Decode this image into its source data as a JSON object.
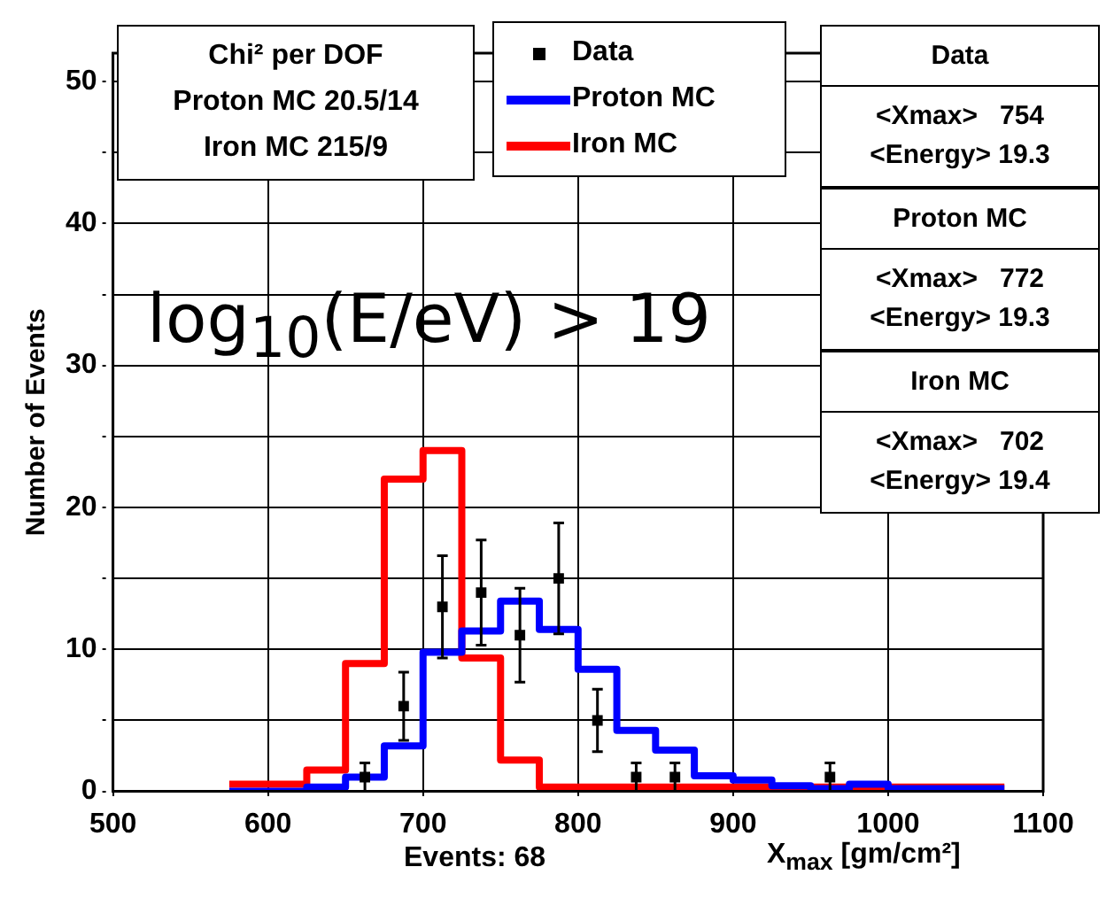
{
  "chart_data": {
    "type": "histogram",
    "title": "log$_{10}$(E/eV) > 19",
    "xlabel": "X$_{max}$ [gm/cm²]",
    "ylabel": "Number of Events",
    "bins": [
      575,
      600,
      625,
      650,
      675,
      700,
      725,
      750,
      775,
      800,
      825,
      850,
      875,
      900,
      925,
      950,
      975,
      1000,
      1025,
      1050,
      1075
    ],
    "series": [
      {
        "name": "Data",
        "type": "scatter",
        "color": "#000000",
        "marker": "square",
        "x": [
          662.5,
          687.5,
          712.5,
          737.5,
          762.5,
          787.5,
          812.5,
          837.5,
          862.5,
          962.5
        ],
        "values": [
          1,
          6,
          13,
          14,
          11,
          15,
          5,
          1,
          1,
          1
        ],
        "errors": [
          1,
          2.4,
          3.6,
          3.7,
          3.3,
          3.9,
          2.2,
          1,
          1,
          1
        ]
      },
      {
        "name": "Proton MC",
        "color": "#0000ff",
        "values": [
          0,
          0,
          0.3,
          1,
          3.2,
          9.8,
          11.3,
          13.4,
          11.4,
          8.6,
          4.3,
          2.9,
          1.1,
          0.8,
          0.4,
          0.2,
          0.5,
          0.2,
          0.2,
          0.2
        ]
      },
      {
        "name": "Iron MC",
        "color": "#ff0000",
        "values": [
          0.5,
          0.5,
          1.5,
          9,
          22,
          24,
          9.4,
          2.2,
          0.3,
          0.3,
          0.3,
          0.3,
          0.3,
          0.3,
          0.3,
          0.3,
          0.3,
          0.3,
          0.3,
          0.3
        ]
      }
    ],
    "xlim": [
      500,
      1100
    ],
    "xticks": [
      500,
      600,
      700,
      800,
      900,
      1000,
      1100
    ],
    "ylim": [
      0,
      52
    ],
    "yticks": [
      0,
      {
        "value": 5,
        "label": null
      },
      10,
      {
        "value": 15,
        "label": null
      },
      20,
      {
        "value": 25,
        "label": null
      },
      30,
      {
        "value": 35,
        "label": null
      },
      40,
      {
        "value": 45,
        "label": null
      },
      50
    ],
    "grid": true,
    "legend": "top",
    "annotations": [
      "Chi² per DOF",
      "Proton MC 20.5/14",
      "Iron MC 215/9",
      "Data",
      "<Xmax>   754",
      "<Energy> 19.3",
      "Proton MC",
      "<Xmax>   772",
      "<Energy> 19.3",
      "Iron MC",
      "<Xmax>   702",
      "<Energy> 19.4",
      "Events: 68"
    ]
  }
}
